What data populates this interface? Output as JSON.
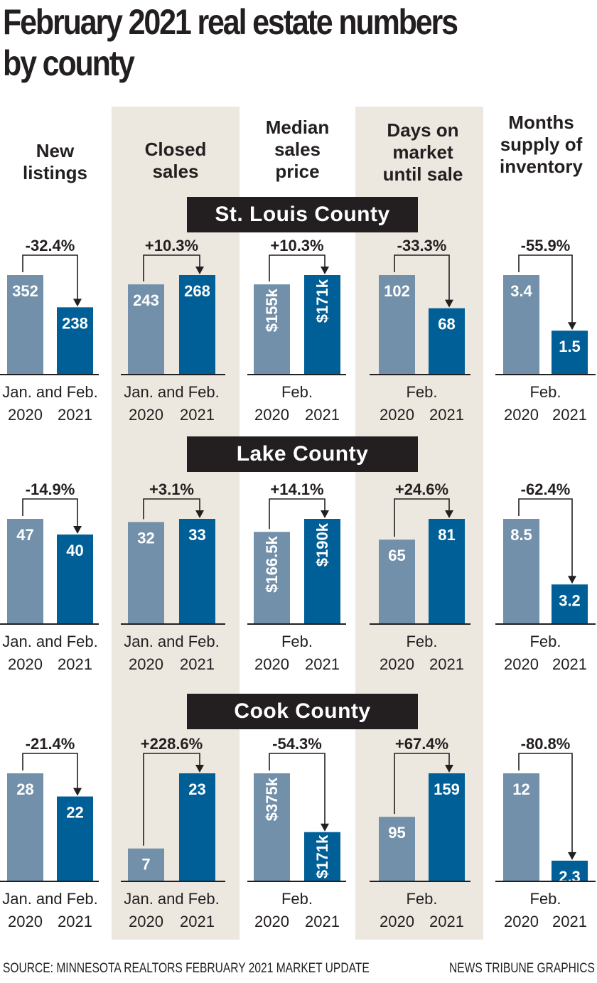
{
  "title": "February 2021 real estate numbers by county",
  "title_lines": [
    "February 2021 real estate numbers",
    "by county"
  ],
  "colors": {
    "bar_2020": "#7290aa",
    "bar_2021": "#005f97",
    "shade": "#ede8df",
    "ink": "#231f20",
    "label_bg": "#231f20",
    "label_text": "#ffffff"
  },
  "columns": [
    {
      "key": "new_listings",
      "header": [
        "New",
        "listings"
      ],
      "period": "Jan. and Feb.",
      "shaded": false
    },
    {
      "key": "closed_sales",
      "header": [
        "Closed",
        "sales"
      ],
      "period": "Jan. and Feb.",
      "shaded": true
    },
    {
      "key": "median_sales_price",
      "header": [
        "Median",
        "sales",
        "price"
      ],
      "period": "Feb.",
      "shaded": false
    },
    {
      "key": "days_on_market",
      "header": [
        "Days on",
        "market",
        "until sale"
      ],
      "period": "Feb.",
      "shaded": true
    },
    {
      "key": "months_supply",
      "header": [
        "Months",
        "supply of",
        "inventory"
      ],
      "period": "Feb.",
      "shaded": false
    }
  ],
  "years": [
    "2020",
    "2021"
  ],
  "chart_data": {
    "type": "bar",
    "title": "February 2021 real estate numbers by county",
    "categories": [
      "2020",
      "2021"
    ],
    "legend": "none",
    "grid": false,
    "panels": [
      {
        "county": "St. Louis County",
        "metric": "New listings",
        "period": "Jan. and Feb.",
        "values": [
          352,
          238
        ],
        "labels": [
          "352",
          "238"
        ],
        "change": "-32.4%",
        "rotated_labels": false
      },
      {
        "county": "St. Louis County",
        "metric": "Closed sales",
        "period": "Jan. and Feb.",
        "values": [
          243,
          268
        ],
        "labels": [
          "243",
          "268"
        ],
        "change": "+10.3%",
        "rotated_labels": false
      },
      {
        "county": "St. Louis County",
        "metric": "Median sales price",
        "period": "Feb.",
        "values": [
          155000,
          171000
        ],
        "labels": [
          "$155k",
          "$171k"
        ],
        "change": "+10.3%",
        "rotated_labels": true
      },
      {
        "county": "St. Louis County",
        "metric": "Days on market until sale",
        "period": "Feb.",
        "values": [
          102,
          68
        ],
        "labels": [
          "102",
          "68"
        ],
        "change": "-33.3%",
        "rotated_labels": false
      },
      {
        "county": "St. Louis County",
        "metric": "Months supply of inventory",
        "period": "Feb.",
        "values": [
          3.4,
          1.5
        ],
        "labels": [
          "3.4",
          "1.5"
        ],
        "change": "-55.9%",
        "rotated_labels": false
      },
      {
        "county": "Lake County",
        "metric": "New listings",
        "period": "Jan. and Feb.",
        "values": [
          47,
          40
        ],
        "labels": [
          "47",
          "40"
        ],
        "change": "-14.9%",
        "rotated_labels": false
      },
      {
        "county": "Lake County",
        "metric": "Closed sales",
        "period": "Jan. and Feb.",
        "values": [
          32,
          33
        ],
        "labels": [
          "32",
          "33"
        ],
        "change": "+3.1%",
        "rotated_labels": false
      },
      {
        "county": "Lake County",
        "metric": "Median sales price",
        "period": "Feb.",
        "values": [
          166500,
          190000
        ],
        "labels": [
          "$166.5k",
          "$190k"
        ],
        "change": "+14.1%",
        "rotated_labels": true
      },
      {
        "county": "Lake County",
        "metric": "Days on market until sale",
        "period": "Feb.",
        "values": [
          65,
          81
        ],
        "labels": [
          "65",
          "81"
        ],
        "change": "+24.6%",
        "rotated_labels": false
      },
      {
        "county": "Lake County",
        "metric": "Months supply of inventory",
        "period": "Feb.",
        "values": [
          8.5,
          3.2
        ],
        "labels": [
          "8.5",
          "3.2"
        ],
        "change": "-62.4%",
        "rotated_labels": false
      },
      {
        "county": "Cook County",
        "metric": "New listings",
        "period": "Jan. and Feb.",
        "values": [
          28,
          22
        ],
        "labels": [
          "28",
          "22"
        ],
        "change": "-21.4%",
        "rotated_labels": false
      },
      {
        "county": "Cook County",
        "metric": "Closed sales",
        "period": "Jan. and Feb.",
        "values": [
          7,
          23
        ],
        "labels": [
          "7",
          "23"
        ],
        "change": "+228.6%",
        "rotated_labels": false
      },
      {
        "county": "Cook County",
        "metric": "Median sales price",
        "period": "Feb.",
        "values": [
          375000,
          171000
        ],
        "labels": [
          "$375k",
          "$171k"
        ],
        "change": "-54.3%",
        "rotated_labels": true
      },
      {
        "county": "Cook County",
        "metric": "Days on market until sale",
        "period": "Feb.",
        "values": [
          95,
          159
        ],
        "labels": [
          "95",
          "159"
        ],
        "change": "+67.4%",
        "rotated_labels": false
      },
      {
        "county": "Cook County",
        "metric": "Months supply of inventory",
        "period": "Feb.",
        "values": [
          12,
          2.3
        ],
        "labels": [
          "12",
          "2.3"
        ],
        "change": "-80.8%",
        "rotated_labels": false
      }
    ]
  },
  "counties": [
    "St. Louis County",
    "Lake County",
    "Cook County"
  ],
  "footer": {
    "source": "SOURCE: MINNESOTA REALTORS FEBRUARY 2021 MARKET UPDATE",
    "credit": "NEWS TRIBUNE GRAPHICS"
  }
}
